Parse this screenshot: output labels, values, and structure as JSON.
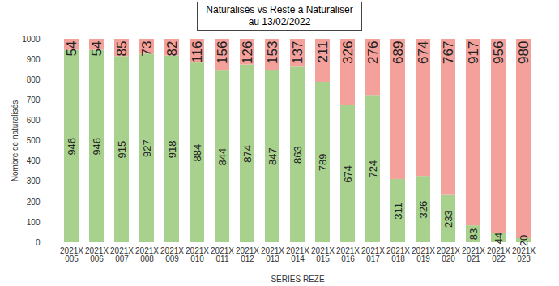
{
  "chart_data": {
    "type": "bar",
    "stacked": true,
    "title": "Naturalisés vs Reste à Naturaliser\nau 13/02/2022",
    "xlabel": "SERIES REZE",
    "ylabel": "Nombre de naturalisés",
    "categories": [
      "2021X\n005",
      "2021X\n006",
      "2021X\n007",
      "2021X\n008",
      "2021X\n009",
      "2021X\n010",
      "2021X\n011",
      "2021X\n012",
      "2021X\n013",
      "2021X\n014",
      "2021X\n015",
      "2021X\n016",
      "2021X\n017",
      "2021X\n018",
      "2021X\n019",
      "2021X\n020",
      "2021X\n021",
      "2021X\n022",
      "2021X\n023"
    ],
    "series": [
      {
        "name": "Naturalisés",
        "color": "#a9d18e",
        "values": [
          946,
          946,
          915,
          927,
          918,
          884,
          844,
          874,
          847,
          863,
          789,
          674,
          724,
          311,
          326,
          233,
          83,
          44,
          20
        ]
      },
      {
        "name": "Reste à Naturaliser",
        "color": "#f4a19b",
        "values": [
          54,
          54,
          85,
          73,
          82,
          116,
          156,
          126,
          153,
          137,
          211,
          326,
          276,
          689,
          674,
          767,
          917,
          956,
          980
        ]
      }
    ],
    "ylim": [
      0,
      1000
    ],
    "yticks": [
      0,
      100,
      200,
      300,
      400,
      500,
      600,
      700,
      800,
      900,
      1000
    ],
    "grid": false,
    "data_labels": true
  }
}
